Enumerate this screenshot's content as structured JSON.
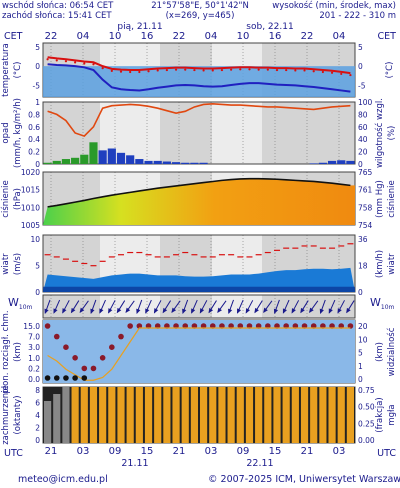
{
  "header": {
    "sunrise": "wschód słońca: 06:54 CET",
    "sunset": "zachód słońca: 15:41 CET",
    "coords": "21°57'58\"E, 50°1'42\"N",
    "grid": "(x=269, y=465)",
    "altitude_title": "wysokość (min, środek, max)",
    "altitude_values": "201 - 222 - 310 m"
  },
  "top_axis": {
    "tz_left": "CET",
    "tz_right": "CET",
    "day1": "pią, 21.11",
    "day2": "sob, 22.11",
    "hours": [
      "22",
      "04",
      "10",
      "16",
      "22",
      "04",
      "10",
      "16",
      "22",
      "04"
    ]
  },
  "bottom_axis": {
    "tz": "UTC",
    "hours": [
      "21",
      "03",
      "09",
      "15",
      "21",
      "03",
      "09",
      "15",
      "21",
      "03"
    ],
    "date1": "21.11",
    "date2": "22.11"
  },
  "footer": {
    "email": "meteo@icm.edu.pl",
    "copyright": "© 2007-2025 ICM, Uniwersytet Warszawski"
  },
  "panels": {
    "temperature": {
      "left_label": "temperatura",
      "left_unit": "(°C)",
      "right_unit": "(°C)",
      "ticks": [
        "5",
        "0",
        "-5"
      ]
    },
    "precip": {
      "left_label": "opad",
      "left_unit": "(mm/h, kg/m²/h)",
      "right_label": "wilgotność wzgl.",
      "right_unit": "(%)",
      "left_ticks": [
        "1",
        "0.8",
        "0.6",
        "0.4",
        "0.2",
        "0"
      ],
      "right_ticks": [
        "100",
        "80",
        "60",
        "40",
        "20",
        "0"
      ]
    },
    "pressure": {
      "left_label": "ciśnienie",
      "left_unit": "(hPa)",
      "right_label": "ciśnienie",
      "right_unit": "(mm Hg)",
      "left_ticks": [
        "1020",
        "1015",
        "1010",
        "1005"
      ],
      "right_ticks": [
        "765",
        "761",
        "758",
        "754"
      ]
    },
    "wind": {
      "left_label": "wiatr",
      "left_unit": "(m/s)",
      "right_label": "wiatr",
      "right_unit": "(km/h)",
      "left_ticks": [
        "10",
        "5",
        "0"
      ],
      "right_ticks": [
        "36",
        "18",
        "0"
      ]
    },
    "wind_dir": {
      "left_label": "W",
      "left_sub": "10m",
      "right_label": "W",
      "right_sub": "10m"
    },
    "cloud_base": {
      "left_label": "plon. rozciągł. chm.",
      "left_unit": "(km)",
      "right_label": "widzialność",
      "right_unit": "(km)",
      "left_ticks": [
        "15.0",
        "7.0",
        "3.0",
        "1.0",
        "0.2",
        "0.0"
      ],
      "right_ticks": [
        "20",
        "10",
        "5",
        "1",
        "0"
      ]
    },
    "cloudiness": {
      "left_label": "zachmurzenie",
      "left_unit": "(oktanty)",
      "right_label": "mgła",
      "right_unit": "(frakcja)",
      "left_ticks": [
        "8",
        "6",
        "4",
        "2",
        "0"
      ],
      "right_ticks": [
        "0.75",
        "0.50",
        "0.25",
        "0.00"
      ]
    }
  },
  "chart_data": [
    {
      "type": "line",
      "panel": "temperature",
      "ylim": [
        -8,
        6
      ],
      "series": [
        {
          "color": "#d81010",
          "values": [
            2.3,
            2.0,
            1.8,
            1.5,
            1.2,
            1.0,
            0.0,
            -0.7,
            -0.9,
            -1.0,
            -1.0,
            -0.8,
            -0.6,
            -0.5,
            -0.4,
            -0.4,
            -0.5,
            -0.6,
            -0.6,
            -0.5,
            -0.4,
            -0.3,
            -0.3,
            -0.4,
            -0.4,
            -0.5,
            -0.5,
            -0.6,
            -0.6,
            -0.8,
            -1.0,
            -1.2,
            -1.5,
            -1.8
          ]
        },
        {
          "color": "#2020c0",
          "values": [
            0.5,
            0.3,
            0.2,
            0.0,
            -0.3,
            -1.0,
            -3.5,
            -5.5,
            -6.0,
            -6.2,
            -6.3,
            -6.0,
            -5.6,
            -5.3,
            -5.0,
            -4.9,
            -5.0,
            -5.2,
            -5.3,
            -5.2,
            -4.9,
            -4.6,
            -4.4,
            -4.4,
            -4.6,
            -4.8,
            -4.9,
            -5.0,
            -5.2,
            -5.4,
            -5.7,
            -6.0,
            -6.3,
            -6.6
          ]
        }
      ]
    },
    {
      "type": "bar",
      "panel": "precip",
      "ylim": [
        0,
        1
      ],
      "values": [
        0.02,
        0.05,
        0.08,
        0.1,
        0.15,
        0.35,
        0.22,
        0.25,
        0.18,
        0.14,
        0.08,
        0.05,
        0.05,
        0.04,
        0.03,
        0.02,
        0.02,
        0.02,
        0.0,
        0.0,
        0.0,
        0.0,
        0.0,
        0.0,
        0.0,
        0.0,
        0.0,
        0.0,
        0.0,
        0.01,
        0.02,
        0.05,
        0.06,
        0.05
      ],
      "humidity": [
        85,
        80,
        70,
        50,
        45,
        60,
        90,
        94,
        95,
        96,
        95,
        93,
        90,
        86,
        82,
        85,
        92,
        96,
        97,
        96,
        95,
        95,
        94,
        93,
        92,
        92,
        91,
        90,
        89,
        88,
        90,
        92,
        93,
        94
      ]
    },
    {
      "type": "area",
      "panel": "pressure",
      "ylim": [
        1005,
        1024
      ],
      "values": [
        1011.5,
        1012.0,
        1012.6,
        1013.2,
        1013.8,
        1014.5,
        1015.1,
        1015.7,
        1016.2,
        1016.7,
        1017.2,
        1017.7,
        1018.2,
        1018.6,
        1019.0,
        1019.4,
        1019.8,
        1020.2,
        1020.6,
        1021.0,
        1021.3,
        1021.5,
        1021.6,
        1021.6,
        1021.5,
        1021.4,
        1021.2,
        1021.0,
        1020.8,
        1020.6,
        1020.3,
        1020.0,
        1019.6,
        1019.2
      ]
    },
    {
      "type": "line",
      "panel": "wind",
      "ylim": [
        0,
        13
      ],
      "series": [
        {
          "color": "#d81010",
          "values": [
            8.5,
            8.0,
            7.5,
            7.0,
            6.5,
            6.0,
            7.0,
            8.0,
            8.5,
            9.0,
            9.0,
            8.5,
            8.0,
            8.0,
            8.5,
            9.0,
            8.5,
            8.0,
            8.0,
            8.5,
            8.5,
            8.0,
            8.0,
            8.5,
            9.0,
            9.5,
            10.0,
            10.0,
            10.5,
            10.5,
            10.0,
            10.0,
            10.5,
            11.0
          ]
        },
        {
          "color": "#1010c0",
          "values": [
            4.0,
            3.8,
            3.6,
            3.4,
            3.2,
            3.0,
            3.4,
            3.8,
            4.0,
            4.2,
            4.2,
            4.0,
            3.8,
            3.8,
            3.8,
            3.6,
            3.5,
            3.5,
            3.6,
            3.8,
            4.0,
            4.0,
            4.0,
            4.2,
            4.5,
            4.8,
            5.0,
            5.0,
            5.2,
            5.3,
            5.3,
            5.2,
            5.3,
            5.5
          ]
        }
      ]
    },
    {
      "type": "scatter",
      "panel": "cloud_base",
      "values": [
        15.0,
        7.0,
        3.0,
        1.0,
        0.2,
        0.2,
        1.0,
        3.0,
        7.0,
        15.0,
        15.0,
        15.0,
        15.0,
        15.0,
        15.0,
        15.0,
        15.0,
        15.0,
        15.0,
        15.0,
        15.0,
        15.0,
        15.0,
        15.0,
        15.0,
        15.0,
        15.0,
        15.0,
        15.0,
        15.0,
        15.0,
        15.0,
        15.0,
        15.0
      ],
      "visibility": [
        10,
        8,
        5,
        3,
        1,
        1,
        2,
        5,
        10,
        15,
        20,
        20,
        20,
        20,
        20,
        20,
        20,
        20,
        20,
        20,
        20,
        20,
        20,
        20,
        20,
        20,
        20,
        20,
        20,
        20,
        20,
        20,
        20,
        20
      ]
    },
    {
      "type": "bar",
      "panel": "cloudiness",
      "ylim": [
        0,
        8
      ],
      "values": [
        6,
        7,
        8,
        8,
        8,
        8,
        8,
        8,
        8,
        8,
        8,
        8,
        8,
        8,
        8,
        8,
        8,
        8,
        8,
        8,
        8,
        8,
        8,
        8,
        8,
        8,
        8,
        8,
        8,
        8,
        8,
        8,
        8,
        8
      ]
    }
  ]
}
